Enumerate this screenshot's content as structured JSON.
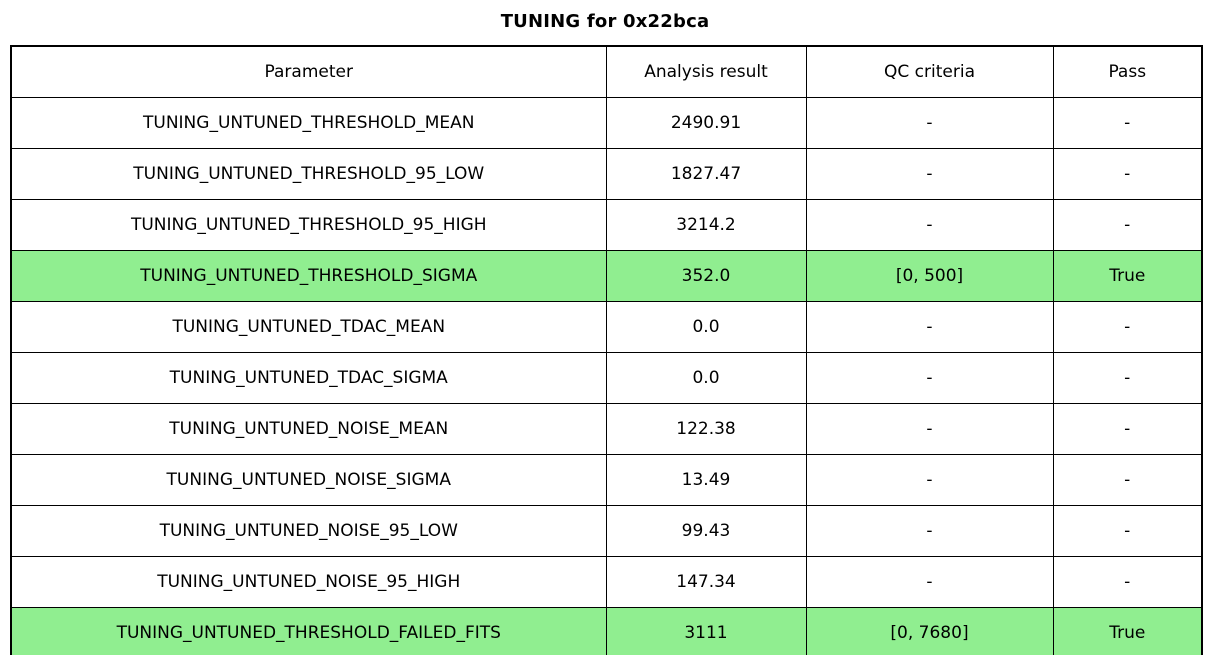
{
  "page": {
    "title": "TUNING for 0x22bca"
  },
  "colors": {
    "highlight": "#90EE90",
    "border": "#000000",
    "background": "#ffffff"
  },
  "chart_data": {
    "type": "table",
    "title": "TUNING for 0x22bca",
    "columns": [
      "Parameter",
      "Analysis result",
      "QC criteria",
      "Pass"
    ],
    "rows": [
      {
        "parameter": "TUNING_UNTUNED_THRESHOLD_MEAN",
        "analysis_result": "2490.91",
        "qc_criteria": "-",
        "pass": "-",
        "highlighted": false
      },
      {
        "parameter": "TUNING_UNTUNED_THRESHOLD_95_LOW",
        "analysis_result": "1827.47",
        "qc_criteria": "-",
        "pass": "-",
        "highlighted": false
      },
      {
        "parameter": "TUNING_UNTUNED_THRESHOLD_95_HIGH",
        "analysis_result": "3214.2",
        "qc_criteria": "-",
        "pass": "-",
        "highlighted": false
      },
      {
        "parameter": "TUNING_UNTUNED_THRESHOLD_SIGMA",
        "analysis_result": "352.0",
        "qc_criteria": "[0, 500]",
        "pass": "True",
        "highlighted": true
      },
      {
        "parameter": "TUNING_UNTUNED_TDAC_MEAN",
        "analysis_result": "0.0",
        "qc_criteria": "-",
        "pass": "-",
        "highlighted": false
      },
      {
        "parameter": "TUNING_UNTUNED_TDAC_SIGMA",
        "analysis_result": "0.0",
        "qc_criteria": "-",
        "pass": "-",
        "highlighted": false
      },
      {
        "parameter": "TUNING_UNTUNED_NOISE_MEAN",
        "analysis_result": "122.38",
        "qc_criteria": "-",
        "pass": "-",
        "highlighted": false
      },
      {
        "parameter": "TUNING_UNTUNED_NOISE_SIGMA",
        "analysis_result": "13.49",
        "qc_criteria": "-",
        "pass": "-",
        "highlighted": false
      },
      {
        "parameter": "TUNING_UNTUNED_NOISE_95_LOW",
        "analysis_result": "99.43",
        "qc_criteria": "-",
        "pass": "-",
        "highlighted": false
      },
      {
        "parameter": "TUNING_UNTUNED_NOISE_95_HIGH",
        "analysis_result": "147.34",
        "qc_criteria": "-",
        "pass": "-",
        "highlighted": false
      },
      {
        "parameter": "TUNING_UNTUNED_THRESHOLD_FAILED_FITS",
        "analysis_result": "3111",
        "qc_criteria": "[0, 7680]",
        "pass": "True",
        "highlighted": true
      }
    ]
  }
}
